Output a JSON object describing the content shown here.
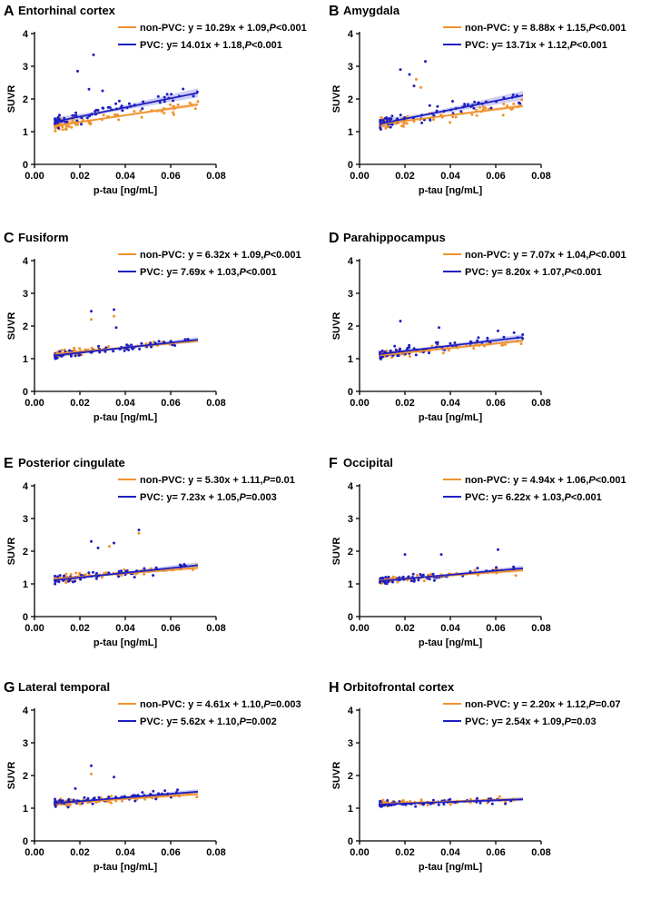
{
  "colors": {
    "non_pvc": "#f0922e",
    "pvc": "#1f1fc0",
    "non_pvc_band": "#f6c28a",
    "pvc_band": "#a8a8ee"
  },
  "chart_data": [
    {
      "type": "scatter",
      "letter": "A",
      "title": "Entorhinal cortex",
      "xlabel": "p-tau [ng/mL]",
      "ylabel": "SUVR",
      "xlim": [
        0,
        0.08
      ],
      "ylim": [
        0,
        4
      ],
      "xticks": [
        "0.00",
        "0.02",
        "0.04",
        "0.06",
        "0.08"
      ],
      "yticks": [
        "0",
        "1",
        "2",
        "3",
        "4"
      ],
      "series": [
        {
          "name": "non-PVC",
          "legend_main": "non-PVC: y = 10.29x + 1.09,",
          "legend_p": "P",
          "legend_tail": "<0.001",
          "slope": 10.29,
          "intercept": 1.09,
          "band": 0.06,
          "seed": 11,
          "spread": 0.16
        },
        {
          "name": "PVC",
          "legend_main": "PVC: y= 14.01x + 1.18,",
          "legend_p": "P",
          "legend_tail": "<0.001",
          "slope": 14.01,
          "intercept": 1.18,
          "band": 0.14,
          "seed": 12,
          "spread": 0.22,
          "outliers": [
            [
              0.026,
              3.35
            ],
            [
              0.019,
              2.85
            ],
            [
              0.024,
              2.3
            ],
            [
              0.03,
              2.25
            ]
          ]
        }
      ]
    },
    {
      "type": "scatter",
      "letter": "B",
      "title": "Amygdala",
      "xlabel": "p-tau [ng/mL]",
      "ylabel": "SUVR",
      "xlim": [
        0,
        0.08
      ],
      "ylim": [
        0,
        4
      ],
      "xticks": [
        "0.00",
        "0.02",
        "0.04",
        "0.06",
        "0.08"
      ],
      "yticks": [
        "0",
        "1",
        "2",
        "3",
        "4"
      ],
      "series": [
        {
          "name": "non-PVC",
          "legend_main": "non-PVC: y = 8.88x + 1.15,",
          "legend_p": "P",
          "legend_tail": "<0.001",
          "slope": 8.88,
          "intercept": 1.15,
          "band": 0.06,
          "seed": 21,
          "spread": 0.16,
          "outliers": [
            [
              0.025,
              2.6
            ],
            [
              0.027,
              2.35
            ]
          ]
        },
        {
          "name": "PVC",
          "legend_main": "PVC: y= 13.71x + 1.12,",
          "legend_p": "P",
          "legend_tail": "<0.001",
          "slope": 13.71,
          "intercept": 1.12,
          "band": 0.14,
          "seed": 22,
          "spread": 0.22,
          "outliers": [
            [
              0.029,
              3.15
            ],
            [
              0.018,
              2.9
            ],
            [
              0.022,
              2.75
            ],
            [
              0.024,
              2.4
            ]
          ]
        }
      ]
    },
    {
      "type": "scatter",
      "letter": "C",
      "title": "Fusiform",
      "xlabel": "p-tau [ng/mL]",
      "ylabel": "SUVR",
      "xlim": [
        0,
        0.08
      ],
      "ylim": [
        0,
        4
      ],
      "xticks": [
        "0.00",
        "0.02",
        "0.04",
        "0.06",
        "0.08"
      ],
      "yticks": [
        "0",
        "1",
        "2",
        "3",
        "4"
      ],
      "series": [
        {
          "name": "non-PVC",
          "legend_main": "non-PVC: y = 6.32x + 1.09,",
          "legend_p": "P",
          "legend_tail": "<0.001",
          "slope": 6.32,
          "intercept": 1.09,
          "band": 0.05,
          "seed": 31,
          "spread": 0.1,
          "outliers": [
            [
              0.025,
              2.2
            ],
            [
              0.035,
              2.3
            ]
          ]
        },
        {
          "name": "PVC",
          "legend_main": "PVC: y= 7.69x + 1.03,",
          "legend_p": "P",
          "legend_tail": "<0.001",
          "slope": 7.69,
          "intercept": 1.03,
          "band": 0.08,
          "seed": 32,
          "spread": 0.12,
          "outliers": [
            [
              0.025,
              2.45
            ],
            [
              0.035,
              2.5
            ],
            [
              0.036,
              1.95
            ]
          ]
        }
      ]
    },
    {
      "type": "scatter",
      "letter": "D",
      "title": "Parahippocampus",
      "xlabel": "p-tau [ng/mL]",
      "ylabel": "SUVR",
      "xlim": [
        0,
        0.08
      ],
      "ylim": [
        0,
        4
      ],
      "xticks": [
        "0.00",
        "0.02",
        "0.04",
        "0.06",
        "0.08"
      ],
      "yticks": [
        "0",
        "1",
        "2",
        "3",
        "4"
      ],
      "series": [
        {
          "name": "non-PVC",
          "legend_main": "non-PVC: y = 7.07x + 1.04,",
          "legend_p": "P",
          "legend_tail": "<0.001",
          "slope": 7.07,
          "intercept": 1.04,
          "band": 0.05,
          "seed": 41,
          "spread": 0.13
        },
        {
          "name": "PVC",
          "legend_main": "PVC: y= 8.20x + 1.07,",
          "legend_p": "P",
          "legend_tail": "<0.001",
          "slope": 8.2,
          "intercept": 1.07,
          "band": 0.09,
          "seed": 42,
          "spread": 0.16,
          "outliers": [
            [
              0.018,
              2.15
            ],
            [
              0.035,
              1.95
            ],
            [
              0.061,
              1.85
            ]
          ]
        }
      ]
    },
    {
      "type": "scatter",
      "letter": "E",
      "title": "Posterior cingulate",
      "xlabel": "p-tau [ng/mL]",
      "ylabel": "SUVR",
      "xlim": [
        0,
        0.08
      ],
      "ylim": [
        0,
        4
      ],
      "xticks": [
        "0.00",
        "0.02",
        "0.04",
        "0.06",
        "0.08"
      ],
      "yticks": [
        "0",
        "1",
        "2",
        "3",
        "4"
      ],
      "series": [
        {
          "name": "non-PVC",
          "legend_main": "non-PVC: y = 5.30x + 1.11,",
          "legend_p": "P",
          "legend_tail": "=0.01",
          "slope": 5.3,
          "intercept": 1.11,
          "band": 0.05,
          "seed": 51,
          "spread": 0.11,
          "outliers": [
            [
              0.046,
              2.55
            ],
            [
              0.033,
              2.15
            ]
          ]
        },
        {
          "name": "PVC",
          "legend_main": "PVC: y= 7.23x + 1.05,",
          "legend_p": "P",
          "legend_tail": "=0.003",
          "slope": 7.23,
          "intercept": 1.05,
          "band": 0.09,
          "seed": 52,
          "spread": 0.13,
          "outliers": [
            [
              0.046,
              2.65
            ],
            [
              0.025,
              2.3
            ],
            [
              0.035,
              2.25
            ],
            [
              0.028,
              2.1
            ]
          ]
        }
      ]
    },
    {
      "type": "scatter",
      "letter": "F",
      "title": "Occipital",
      "xlabel": "p-tau [ng/mL]",
      "ylabel": "SUVR",
      "xlim": [
        0,
        0.08
      ],
      "ylim": [
        0,
        4
      ],
      "xticks": [
        "0.00",
        "0.02",
        "0.04",
        "0.06",
        "0.08"
      ],
      "yticks": [
        "0",
        "1",
        "2",
        "3",
        "4"
      ],
      "series": [
        {
          "name": "non-PVC",
          "legend_main": "non-PVC: y = 4.94x + 1.06,",
          "legend_p": "P",
          "legend_tail": "<0.001",
          "slope": 4.94,
          "intercept": 1.06,
          "band": 0.05,
          "seed": 61,
          "spread": 0.1
        },
        {
          "name": "PVC",
          "legend_main": "PVC: y= 6.22x + 1.03,",
          "legend_p": "P",
          "legend_tail": "<0.001",
          "slope": 6.22,
          "intercept": 1.03,
          "band": 0.08,
          "seed": 62,
          "spread": 0.12,
          "outliers": [
            [
              0.061,
              2.05
            ],
            [
              0.02,
              1.9
            ],
            [
              0.036,
              1.9
            ]
          ]
        }
      ]
    },
    {
      "type": "scatter",
      "letter": "G",
      "title": "Lateral temporal",
      "xlabel": "p-tau [ng/mL]",
      "ylabel": "SUVR",
      "xlim": [
        0,
        0.08
      ],
      "ylim": [
        0,
        4
      ],
      "xticks": [
        "0.00",
        "0.02",
        "0.04",
        "0.06",
        "0.08"
      ],
      "yticks": [
        "0",
        "1",
        "2",
        "3",
        "4"
      ],
      "series": [
        {
          "name": "non-PVC",
          "legend_main": "non-PVC: y = 4.61x + 1.10,",
          "legend_p": "P",
          "legend_tail": "=0.003",
          "slope": 4.61,
          "intercept": 1.1,
          "band": 0.05,
          "seed": 71,
          "spread": 0.1,
          "outliers": [
            [
              0.025,
              2.05
            ]
          ]
        },
        {
          "name": "PVC",
          "legend_main": "PVC: y= 5.62x + 1.10,",
          "legend_p": "P",
          "legend_tail": "=0.002",
          "slope": 5.62,
          "intercept": 1.1,
          "band": 0.08,
          "seed": 72,
          "spread": 0.12,
          "outliers": [
            [
              0.025,
              2.3
            ],
            [
              0.035,
              1.95
            ],
            [
              0.018,
              1.6
            ]
          ]
        }
      ]
    },
    {
      "type": "scatter",
      "letter": "H",
      "title": "Orbitofrontal cortex",
      "xlabel": "p-tau [ng/mL]",
      "ylabel": "SUVR",
      "xlim": [
        0,
        0.08
      ],
      "ylim": [
        0,
        4
      ],
      "xticks": [
        "0.00",
        "0.02",
        "0.04",
        "0.06",
        "0.08"
      ],
      "yticks": [
        "0",
        "1",
        "2",
        "3",
        "4"
      ],
      "series": [
        {
          "name": "non-PVC",
          "legend_main": "non-PVC: y = 2.20x + 1.12,",
          "legend_p": "P",
          "legend_tail": "=0.07",
          "slope": 2.2,
          "intercept": 1.12,
          "band": 0.05,
          "seed": 81,
          "spread": 0.09
        },
        {
          "name": "PVC",
          "legend_main": "PVC: y= 2.54x + 1.09,",
          "legend_p": "P",
          "legend_tail": "=0.03",
          "slope": 2.54,
          "intercept": 1.09,
          "band": 0.06,
          "seed": 82,
          "spread": 0.1
        }
      ]
    }
  ]
}
